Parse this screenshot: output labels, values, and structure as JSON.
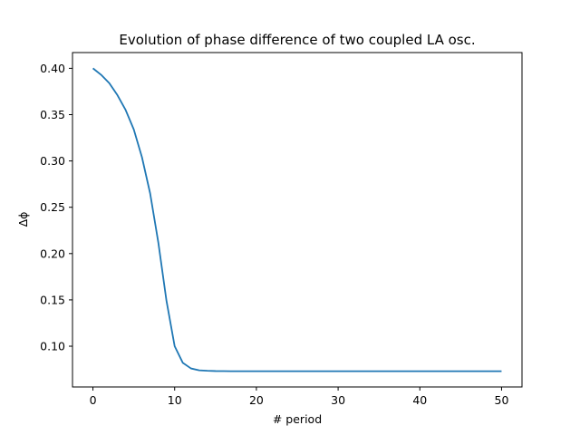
{
  "chart_data": {
    "type": "line",
    "title": "Evolution of phase difference of two coupled LA osc.",
    "xlabel": "# period",
    "ylabel": "Δϕ",
    "xlim": [
      -2.5,
      52.5
    ],
    "ylim": [
      0.056,
      0.417
    ],
    "xticks": [
      0,
      10,
      20,
      30,
      40,
      50
    ],
    "yticks": [
      0.1,
      0.15,
      0.2,
      0.25,
      0.3,
      0.35,
      0.4
    ],
    "xtick_labels": [
      "0",
      "10",
      "20",
      "30",
      "40",
      "50"
    ],
    "ytick_labels": [
      "0.10",
      "0.15",
      "0.20",
      "0.25",
      "0.30",
      "0.35",
      "0.40"
    ],
    "grid": false,
    "series": [
      {
        "color": "#1f77b4",
        "x": [
          0,
          1,
          2,
          3,
          4,
          5,
          6,
          7,
          8,
          9,
          10,
          11,
          12,
          13,
          14,
          15,
          16,
          17,
          18,
          19,
          20,
          21,
          22,
          23,
          24,
          25,
          26,
          27,
          28,
          29,
          30,
          31,
          32,
          33,
          34,
          35,
          36,
          37,
          38,
          39,
          40,
          41,
          42,
          43,
          44,
          45,
          46,
          47,
          48,
          49,
          50
        ],
        "y": [
          0.4,
          0.393,
          0.384,
          0.371,
          0.355,
          0.334,
          0.304,
          0.265,
          0.212,
          0.149,
          0.1,
          0.082,
          0.076,
          0.074,
          0.0735,
          0.0732,
          0.0731,
          0.073,
          0.073,
          0.073,
          0.073,
          0.073,
          0.073,
          0.073,
          0.073,
          0.073,
          0.073,
          0.073,
          0.073,
          0.073,
          0.073,
          0.073,
          0.073,
          0.073,
          0.073,
          0.073,
          0.073,
          0.073,
          0.073,
          0.073,
          0.073,
          0.073,
          0.073,
          0.073,
          0.073,
          0.073,
          0.073,
          0.073,
          0.073,
          0.073,
          0.073
        ]
      }
    ]
  }
}
